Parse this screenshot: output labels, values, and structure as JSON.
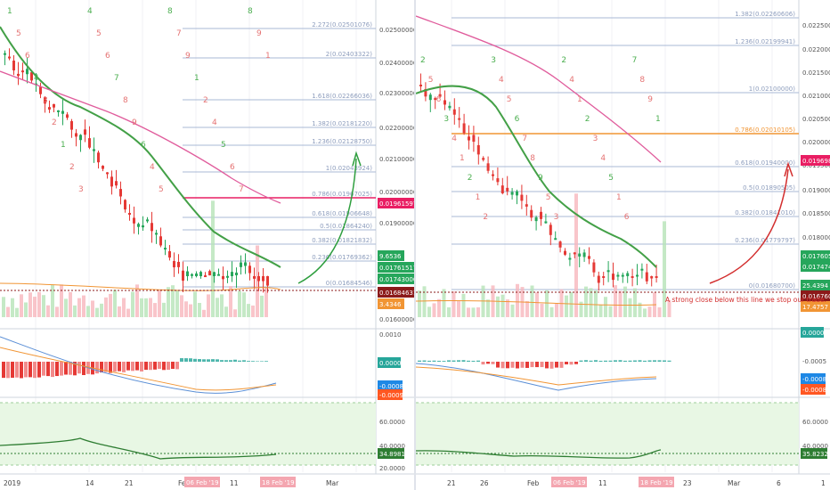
{
  "colors": {
    "up": "#26a65b",
    "down": "#e53935",
    "ema_green": "#43a047",
    "ma_pink": "#e05c9c",
    "orange": "#f19534",
    "fib_line": "#a9b8d6",
    "fib_text": "#8d9dbd",
    "level_red": "#e91e63",
    "level_dark": "#8b1a1a",
    "rsi_bg": "#e8f7e4",
    "rsi_line": "#2e7d32",
    "annotation": "#d32f2f",
    "arrow_green": "#2e9e3e",
    "arrow_red": "#d32f2f"
  },
  "left": {
    "fib_levels": [
      "2.272(0.02501076)",
      "2(0.02403322)",
      "1.618(0.02266036)",
      "1.382(0.02181220)",
      "1.236(0.02128750)",
      "1(0.02043924)",
      "0.786(0.01967025)",
      "0.618(0.01906648)",
      "0.5(0.01864240)",
      "0.382(0.01821832)",
      "0.236(0.01769362)",
      "0(0.01684546)"
    ],
    "price_ticks": [
      "0.02500000",
      "0.02400000",
      "0.02300000",
      "0.02200000",
      "0.02100000",
      "0.02000000",
      "0.01900000",
      "0.01600000"
    ],
    "price_labels": {
      "pink": "0.01961597",
      "green_a": "9.6536",
      "green_b": "0.01761517",
      "green_c": "0.01743000",
      "dark": "0.01684631",
      "orange": "3.4346"
    },
    "macd_ticks": [
      "0.0010"
    ],
    "macd_labels": {
      "teal": "0.0000",
      "blue": "-0.0008",
      "red": "-0.0009"
    },
    "rsi_ticks": [
      "60.0000",
      "40.0000",
      "20.0000"
    ],
    "rsi_label": "34.8981",
    "xaxis": [
      "2019",
      "14",
      "21",
      "Feb",
      "11",
      "Mar"
    ],
    "date_badges": [
      "06 Feb '19",
      "18 Feb '19"
    ],
    "td_numbers": [
      "1",
      "5",
      "6",
      "4",
      "3",
      "2",
      "1",
      "2",
      "3",
      "4",
      "5",
      "6",
      "7",
      "8",
      "9",
      "6",
      "4",
      "5",
      "8",
      "7",
      "9",
      "1",
      "2",
      "4",
      "5",
      "6",
      "7",
      "8",
      "9",
      "1"
    ]
  },
  "right": {
    "fib_levels": [
      "1.382(0.02260606)",
      "1.236(0.02199941)",
      "1(0.02100000)",
      "0.786(0.02010105)",
      "0.618(0.01940000)",
      "0.5(0.01890505)",
      "0.382(0.01841010)",
      "0.236(0.01779797)",
      "0(0.01680700)"
    ],
    "price_ticks": [
      "0.0225000",
      "0.0220000",
      "0.0215000",
      "0.0210000",
      "0.0205000",
      "0.0200000",
      "0.0195000",
      "0.0190000",
      "0.0185000",
      "0.0180000",
      "0.0175000"
    ],
    "price_labels": {
      "pink": "0.01969822",
      "green_a": "0.01760501",
      "green_b": "0.01747438",
      "dark": "0.0167602",
      "green_c": "25.4394",
      "dark2": "0.0167602",
      "orange": "17.4757"
    },
    "annotation": "A strong close below this line we stop our trade.",
    "macd_ticks": [
      "-0.0005"
    ],
    "macd_labels": {
      "teal": "0.0000",
      "blue": "-0.0008",
      "red": "-0.0008"
    },
    "rsi_ticks": [
      "60.0000",
      "40.0000"
    ],
    "rsi_label": "35.8232",
    "xaxis": [
      "21",
      "26",
      "Feb",
      "11",
      "23",
      "Mar",
      "6",
      "1"
    ],
    "date_badges": [
      "06 Feb '19",
      "18 Feb '19"
    ],
    "td_numbers": [
      "2",
      "5",
      "6",
      "3",
      "4",
      "1",
      "2",
      "1",
      "2",
      "3",
      "4",
      "5",
      "6",
      "7",
      "8",
      "9",
      "5",
      "3",
      "2",
      "4",
      "1",
      "2",
      "3",
      "4",
      "5",
      "1",
      "6",
      "7",
      "8",
      "9",
      "1"
    ]
  }
}
